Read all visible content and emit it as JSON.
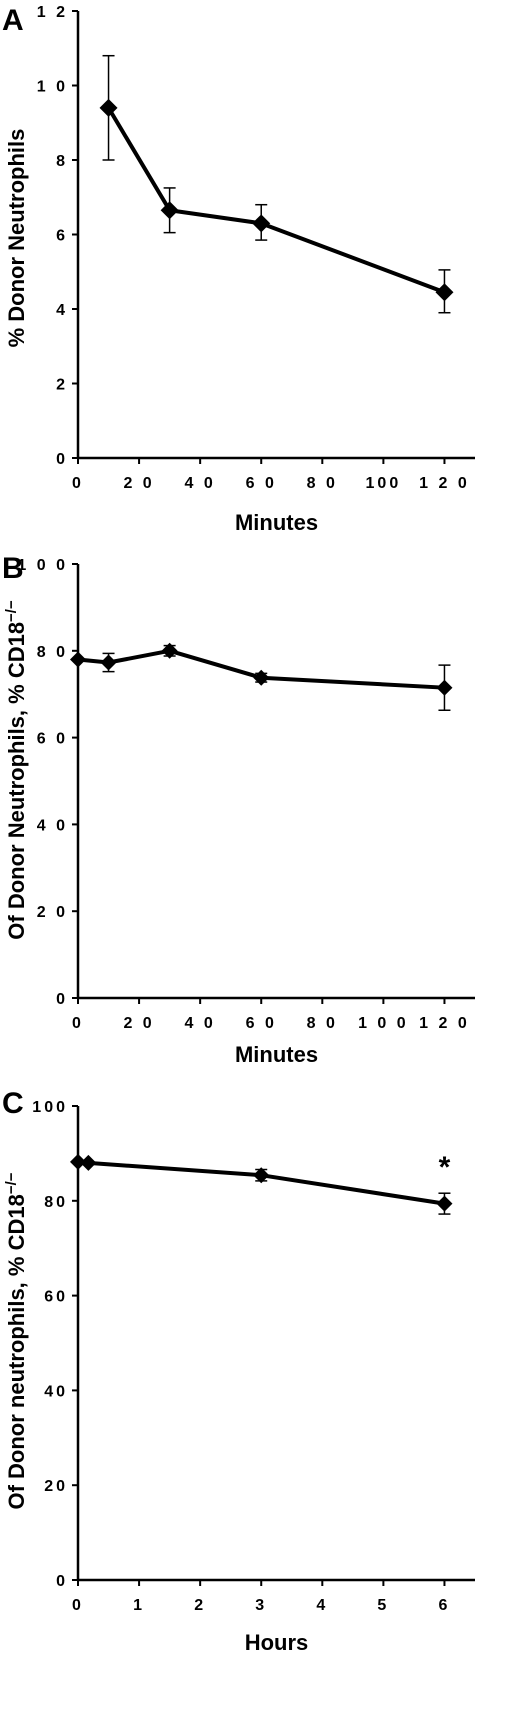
{
  "chart_data": [
    {
      "type": "line",
      "panel": "A",
      "xlabel": "Minutes",
      "ylabel": "% Donor Neutrophils",
      "xlim": [
        0,
        130
      ],
      "ylim": [
        0,
        12
      ],
      "x_ticks": [
        0,
        20,
        40,
        60,
        80,
        100,
        120
      ],
      "x_tick_labels": [
        "0",
        "2 0",
        "4 0",
        "6 0",
        "8 0",
        "100",
        "1 2 0"
      ],
      "y_ticks": [
        0,
        2,
        4,
        6,
        8,
        10,
        12
      ],
      "y_tick_labels": [
        "0",
        "2",
        "4",
        "6",
        "8",
        "1 0",
        "1 2"
      ],
      "series": [
        {
          "x": [
            10,
            30,
            60,
            120
          ],
          "y": [
            9.4,
            6.65,
            6.3,
            4.45
          ],
          "err_low": [
            8.0,
            6.05,
            5.85,
            3.9
          ],
          "err_high": [
            10.8,
            7.25,
            6.8,
            5.05
          ]
        }
      ],
      "annotations": []
    },
    {
      "type": "line",
      "panel": "B",
      "xlabel": "Minutes",
      "ylabel": "Of Donor Neutrophils, % CD18",
      "ylabel_sup": "−/−",
      "xlim": [
        0,
        130
      ],
      "ylim": [
        0,
        100
      ],
      "x_ticks": [
        0,
        20,
        40,
        60,
        80,
        100,
        120
      ],
      "x_tick_labels": [
        "0",
        "2 0",
        "4 0",
        "6 0",
        "8 0",
        "1 0 0",
        "1 2 0"
      ],
      "y_ticks": [
        0,
        20,
        40,
        60,
        80,
        100
      ],
      "y_tick_labels": [
        "0",
        "2 0",
        "4 0",
        "6 0",
        "8 0",
        "1 0 0"
      ],
      "series": [
        {
          "x": [
            0,
            10,
            30,
            60,
            120
          ],
          "y": [
            78,
            77.3,
            80,
            73.8,
            71.5
          ],
          "err_low": [
            78,
            75.2,
            78.8,
            72.8,
            66.3
          ],
          "err_high": [
            78,
            79.4,
            81.2,
            74.8,
            76.7
          ]
        }
      ],
      "annotations": []
    },
    {
      "type": "line",
      "panel": "C",
      "xlabel": "Hours",
      "ylabel": "Of Donor neutrophils, % CD18",
      "ylabel_sup": "−/−",
      "xlim": [
        0,
        6.5
      ],
      "ylim": [
        0,
        100
      ],
      "x_ticks": [
        0,
        1,
        2,
        3,
        4,
        5,
        6
      ],
      "x_tick_labels": [
        "0",
        "1",
        "2",
        "3",
        "4",
        "5",
        "6"
      ],
      "y_ticks": [
        0,
        20,
        40,
        60,
        80,
        100
      ],
      "y_tick_labels": [
        "0",
        "20",
        "40",
        "60",
        "80",
        "100"
      ],
      "series": [
        {
          "x": [
            0,
            0.17,
            3,
            6
          ],
          "y": [
            88.2,
            88,
            85.4,
            79.4
          ],
          "err_low": [
            88.2,
            88,
            84.2,
            77.2
          ],
          "err_high": [
            88.2,
            88,
            86.6,
            81.6
          ]
        }
      ],
      "annotations": [
        {
          "x": 6,
          "y": 88,
          "text": "*"
        }
      ]
    }
  ]
}
